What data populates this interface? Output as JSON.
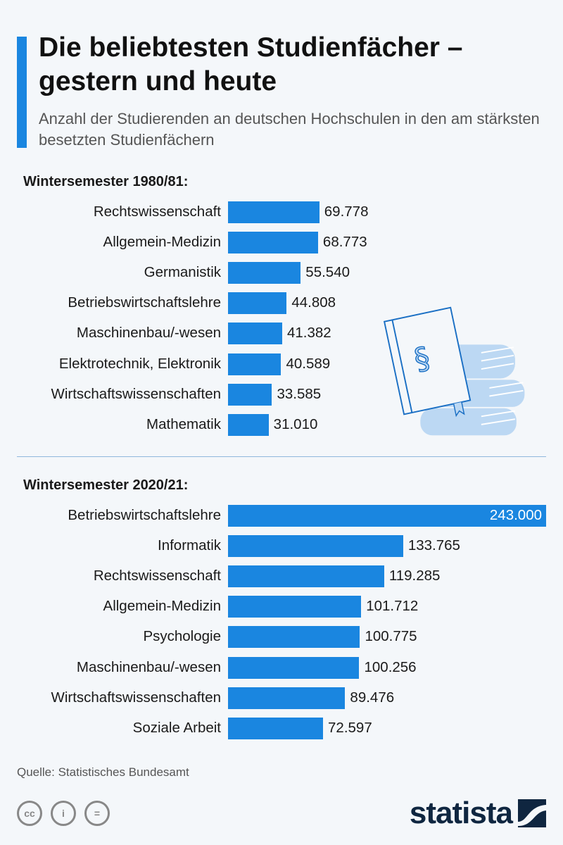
{
  "title": "Die beliebtesten Studienfächer – gestern und heute",
  "subtitle": "Anzahl der Studierenden an deutschen Hochschulen in den am stärksten besetzten Studienfächern",
  "source": "Quelle: Statistisches Bundesamt",
  "brand": "statista",
  "colors": {
    "bar": "#1a86e0",
    "background": "#f4f7fa",
    "brand": "#0f2640"
  },
  "icons": {
    "illustration": "law-book-stack-icon",
    "license": [
      "cc-icon",
      "attribution-icon",
      "no-derivatives-icon"
    ]
  },
  "chart_data": [
    {
      "type": "bar",
      "orientation": "horizontal",
      "title": "Wintersemester 1980/81:",
      "categories": [
        "Rechtswissenschaft",
        "Allgemein-Medizin",
        "Germanistik",
        "Betriebswirtschaftslehre",
        "Maschinenbau/-wesen",
        "Elektrotechnik, Elektronik",
        "Wirtschaftswissenschaften",
        "Mathematik"
      ],
      "values": [
        69778,
        68773,
        55540,
        44808,
        41382,
        40589,
        33585,
        31010
      ],
      "labels": [
        "69.778",
        "68.773",
        "55.540",
        "44.808",
        "41.382",
        "40.589",
        "33.585",
        "31.010"
      ],
      "xlim": [
        0,
        243000
      ]
    },
    {
      "type": "bar",
      "orientation": "horizontal",
      "title": "Wintersemester 2020/21:",
      "categories": [
        "Betriebswirtschaftslehre",
        "Informatik",
        "Rechtswissenschaft",
        "Allgemein-Medizin",
        "Psychologie",
        "Maschinenbau/-wesen",
        "Wirtschaftswissenschaften",
        "Soziale Arbeit"
      ],
      "values": [
        243000,
        133765,
        119285,
        101712,
        100775,
        100256,
        89476,
        72597
      ],
      "labels": [
        "243.000",
        "133.765",
        "119.285",
        "101.712",
        "100.775",
        "100.256",
        "89.476",
        "72.597"
      ],
      "xlim": [
        0,
        243000
      ]
    }
  ]
}
